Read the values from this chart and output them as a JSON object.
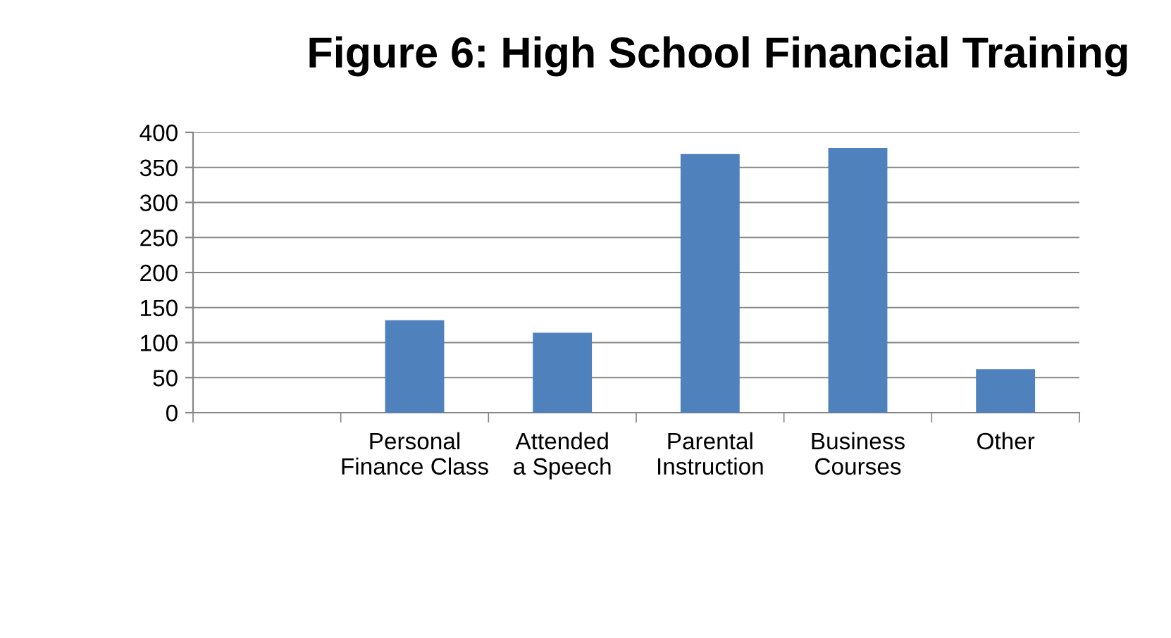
{
  "chart_data": {
    "type": "bar",
    "title": "Figure 6: High School Financial Training",
    "categories": [
      null,
      "Personal Finance Class",
      "Attended a Speech",
      "Parental Instruction",
      "Business Courses",
      "Other"
    ],
    "values": [
      null,
      132,
      114,
      369,
      378,
      62
    ],
    "color": "#4f81bd",
    "ylim": [
      0,
      400
    ],
    "yticks": [
      0,
      50,
      100,
      150,
      200,
      250,
      300,
      350,
      400
    ],
    "grid": "y",
    "legend": false
  }
}
